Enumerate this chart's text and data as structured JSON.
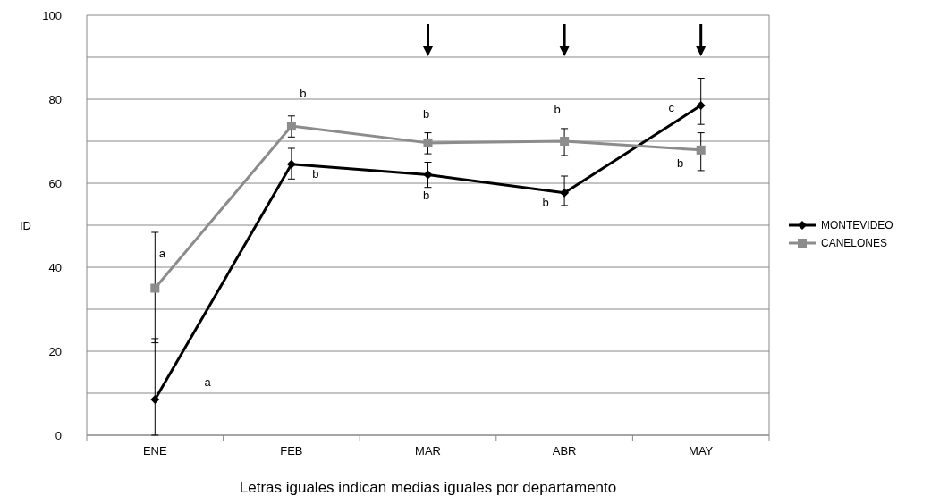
{
  "chart_data": {
    "type": "line",
    "ylabel": "ID",
    "categories": [
      "ENE",
      "FEB",
      "MAR",
      "ABR",
      "MAY"
    ],
    "series": [
      {
        "name": "MONTEVIDEO",
        "color": "#000000",
        "marker": "diamond",
        "values": [
          8.5,
          64.5,
          62,
          57.7,
          78.5
        ],
        "errors": [
          [
            0,
            23
          ],
          [
            61,
            68.3
          ],
          [
            59,
            65
          ],
          [
            54.7,
            61.7
          ],
          [
            74,
            85
          ]
        ]
      },
      {
        "name": "CANELONES",
        "color": "#8c8c8c",
        "marker": "square",
        "values": [
          35,
          73.6,
          69.6,
          70,
          67.9
        ],
        "errors": [
          [
            22,
            48.3
          ],
          [
            71,
            76
          ],
          [
            67,
            72
          ],
          [
            66.6,
            73
          ],
          [
            63,
            72
          ]
        ]
      }
    ],
    "ylim": [
      0,
      100
    ],
    "yticks": [
      0,
      {
        "value": 10,
        "label": null
      },
      20,
      {
        "value": 30,
        "label": null
      },
      40,
      {
        "value": 50,
        "label": null
      },
      60,
      {
        "value": 70,
        "label": null
      },
      80,
      {
        "value": 90,
        "label": null
      },
      100
    ],
    "grid": "y",
    "legend": "right",
    "annotations": [
      {
        "text": "a",
        "x": "ENE",
        "y": 35
      },
      "a",
      {
        "text": "b",
        "x": "FEB",
        "y": 73.6
      },
      {
        "text": "b",
        "x": "FEB",
        "y": 64.5
      },
      {
        "text": "b",
        "x": "MAR",
        "y": 69.6
      },
      {
        "text": "b",
        "x": "MAR",
        "y": 62
      },
      {
        "text": "b",
        "x": "ABR",
        "y": 70
      },
      {
        "text": "b",
        "x": "ABR",
        "y": 57.7
      },
      {
        "text": "c",
        "x": "MAY",
        "y": 78.5
      },
      {
        "text": "b",
        "x": "MAY",
        "y": 67.9
      },
      "Letras iguales indican medias iguales por departamento"
    ]
  }
}
